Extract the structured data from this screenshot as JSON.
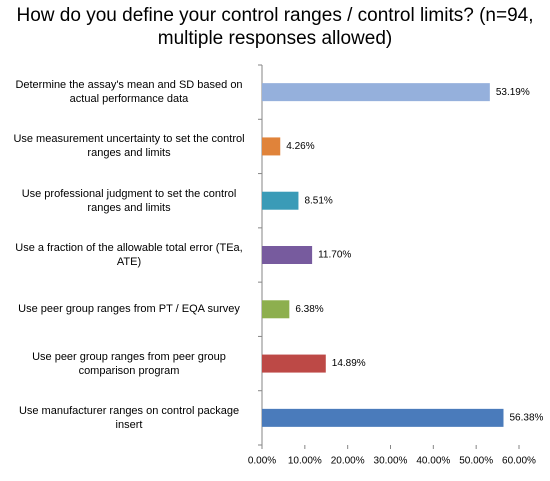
{
  "chart_data": {
    "type": "bar",
    "orientation": "horizontal",
    "title": "How do you define your control ranges / control limits? (n=94, multiple responses allowed)",
    "categories": [
      "Determine the assay's mean and SD based on actual performance data",
      "Use measurement uncertainty to set the control ranges and limits",
      "Use professional judgment to set the control ranges and limits",
      "Use a fraction of the allowable total error (TEa, ATE)",
      "Use peer group ranges from PT / EQA survey",
      "Use peer group ranges from peer group comparison program",
      "Use manufacturer ranges on control package insert"
    ],
    "values": [
      53.19,
      4.26,
      8.51,
      11.7,
      6.38,
      14.89,
      56.38
    ],
    "value_labels": [
      "53.19%",
      "4.26%",
      "8.51%",
      "11.70%",
      "6.38%",
      "14.89%",
      "56.38%"
    ],
    "colors": [
      "#95b0dc",
      "#e0833a",
      "#3a9bb7",
      "#775b9e",
      "#8daf4e",
      "#bd4946",
      "#4a7bbb"
    ],
    "xlim": [
      0,
      60
    ],
    "xticks": [
      {
        "value": 0,
        "label": "0.00%"
      },
      {
        "value": 10,
        "label": "10.00%"
      },
      {
        "value": 20,
        "label": "20.00%"
      },
      {
        "value": 30,
        "label": "30.00%"
      },
      {
        "value": 40,
        "label": "40.00%"
      },
      {
        "value": 50,
        "label": "50.00%"
      },
      {
        "value": 60,
        "label": "60.00%"
      }
    ],
    "grid": false
  }
}
